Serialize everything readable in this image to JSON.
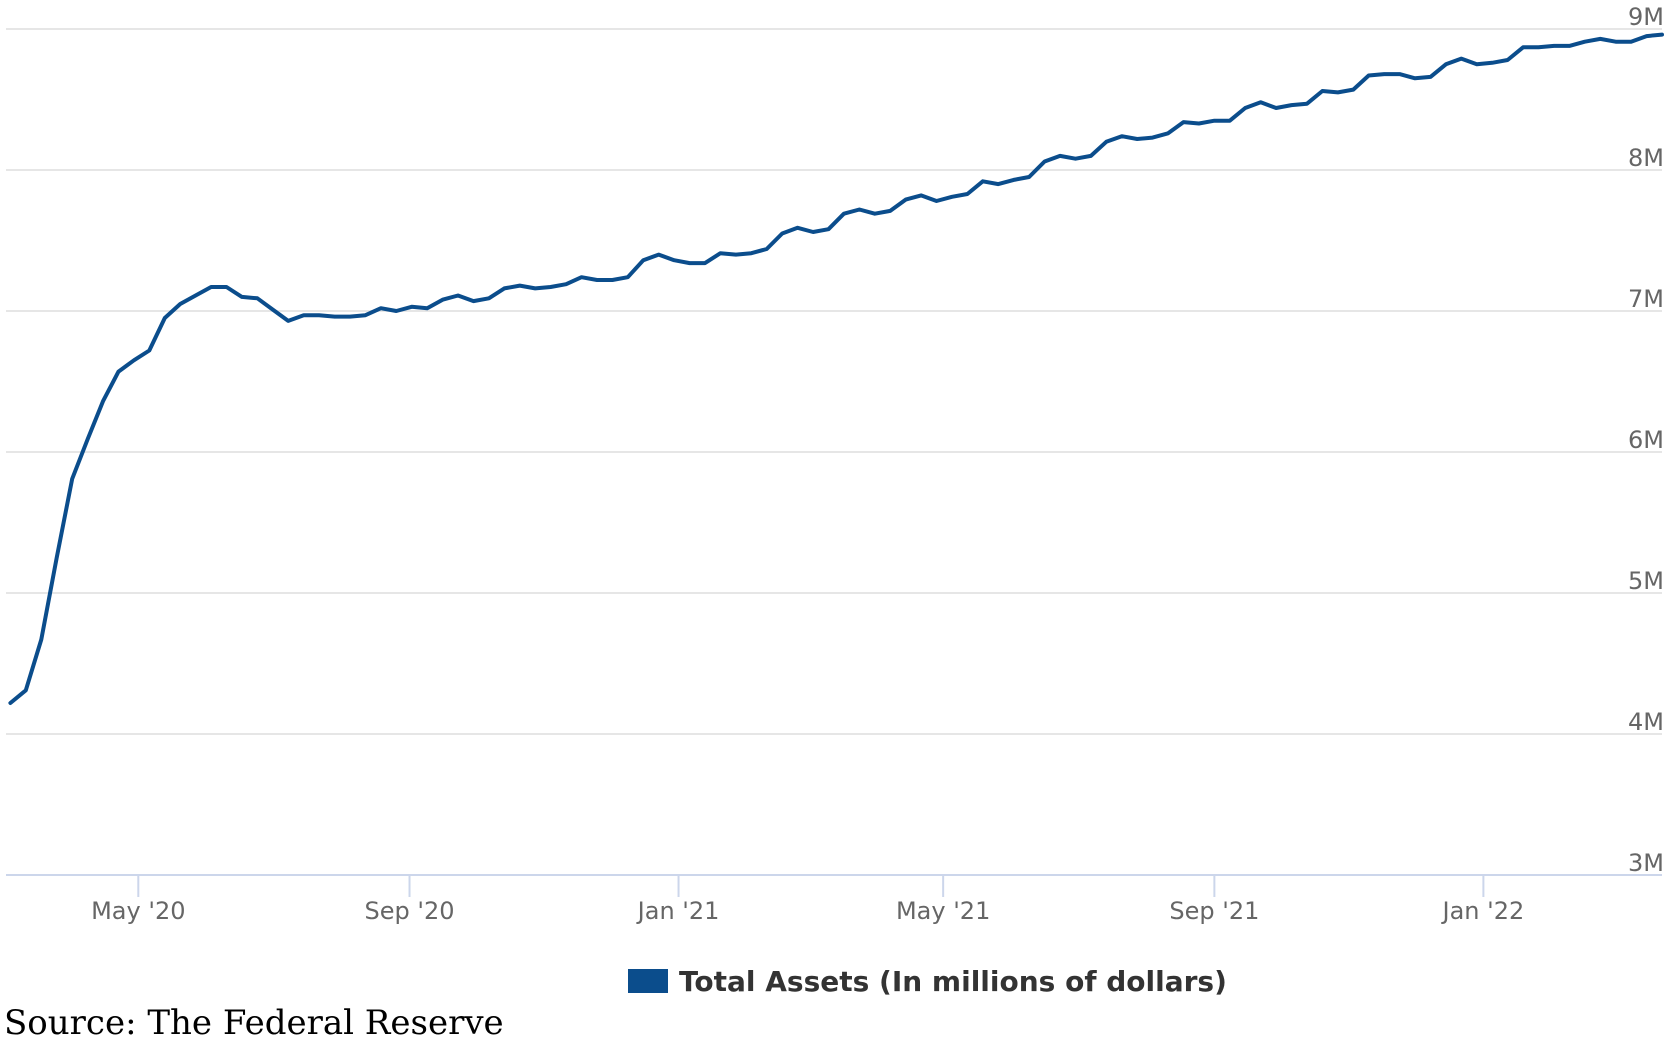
{
  "chart_data": {
    "type": "line",
    "title": "",
    "xlabel": "",
    "ylabel": "",
    "ylim": [
      3,
      9
    ],
    "y_ticks": [
      3,
      4,
      5,
      6,
      7,
      8,
      9
    ],
    "y_tick_labels": [
      "3M",
      "4M",
      "5M",
      "6M",
      "7M",
      "8M",
      "9M"
    ],
    "y_axis_side": "right",
    "grid": true,
    "xlim": [
      "2020-03-02",
      "2022-03-23"
    ],
    "x_ticks": [
      "2020-05-01",
      "2020-09-01",
      "2021-01-01",
      "2021-05-01",
      "2021-09-01",
      "2022-01-01"
    ],
    "x_tick_labels": [
      "May '20",
      "Sep '20",
      "Jan '21",
      "May '21",
      "Sep '21",
      "Jan '22"
    ],
    "legend_position": "bottom-center",
    "series": [
      {
        "name": "Total Assets (In millions of dollars)",
        "color": "#0b4d8c",
        "x": [
          "2020-03-04",
          "2020-03-11",
          "2020-03-18",
          "2020-03-25",
          "2020-04-01",
          "2020-04-08",
          "2020-04-15",
          "2020-04-22",
          "2020-04-29",
          "2020-05-06",
          "2020-05-13",
          "2020-05-20",
          "2020-05-27",
          "2020-06-03",
          "2020-06-10",
          "2020-06-17",
          "2020-06-24",
          "2020-07-01",
          "2020-07-08",
          "2020-07-15",
          "2020-07-22",
          "2020-07-29",
          "2020-08-05",
          "2020-08-12",
          "2020-08-19",
          "2020-08-26",
          "2020-09-02",
          "2020-09-09",
          "2020-09-16",
          "2020-09-23",
          "2020-09-30",
          "2020-10-07",
          "2020-10-14",
          "2020-10-21",
          "2020-10-28",
          "2020-11-04",
          "2020-11-11",
          "2020-11-18",
          "2020-11-25",
          "2020-12-02",
          "2020-12-09",
          "2020-12-16",
          "2020-12-23",
          "2020-12-30",
          "2021-01-06",
          "2021-01-13",
          "2021-01-20",
          "2021-01-27",
          "2021-02-03",
          "2021-02-10",
          "2021-02-17",
          "2021-02-24",
          "2021-03-03",
          "2021-03-10",
          "2021-03-17",
          "2021-03-24",
          "2021-03-31",
          "2021-04-07",
          "2021-04-14",
          "2021-04-21",
          "2021-04-28",
          "2021-05-05",
          "2021-05-12",
          "2021-05-19",
          "2021-05-26",
          "2021-06-02",
          "2021-06-09",
          "2021-06-16",
          "2021-06-23",
          "2021-06-30",
          "2021-07-07",
          "2021-07-14",
          "2021-07-21",
          "2021-07-28",
          "2021-08-04",
          "2021-08-11",
          "2021-08-18",
          "2021-08-25",
          "2021-09-01",
          "2021-09-08",
          "2021-09-15",
          "2021-09-22",
          "2021-09-29",
          "2021-10-06",
          "2021-10-13",
          "2021-10-20",
          "2021-10-27",
          "2021-11-03",
          "2021-11-10",
          "2021-11-17",
          "2021-11-24",
          "2021-12-01",
          "2021-12-08",
          "2021-12-15",
          "2021-12-22",
          "2021-12-29",
          "2022-01-05",
          "2022-01-12",
          "2022-01-19",
          "2022-01-26",
          "2022-02-02",
          "2022-02-09",
          "2022-02-16",
          "2022-02-23",
          "2022-03-02",
          "2022-03-09",
          "2022-03-16",
          "2022-03-23"
        ],
        "values": [
          4.22,
          4.31,
          4.67,
          5.25,
          5.81,
          6.09,
          6.36,
          6.57,
          6.65,
          6.72,
          6.95,
          7.05,
          7.11,
          7.17,
          7.17,
          7.1,
          7.09,
          7.01,
          6.93,
          6.97,
          6.97,
          6.96,
          6.96,
          6.97,
          7.02,
          7.0,
          7.03,
          7.02,
          7.08,
          7.11,
          7.07,
          7.09,
          7.16,
          7.18,
          7.16,
          7.17,
          7.19,
          7.24,
          7.22,
          7.22,
          7.24,
          7.36,
          7.4,
          7.36,
          7.34,
          7.34,
          7.41,
          7.4,
          7.41,
          7.44,
          7.55,
          7.59,
          7.56,
          7.58,
          7.69,
          7.72,
          7.69,
          7.71,
          7.79,
          7.82,
          7.78,
          7.81,
          7.83,
          7.92,
          7.9,
          7.93,
          7.95,
          8.06,
          8.1,
          8.08,
          8.1,
          8.2,
          8.24,
          8.22,
          8.23,
          8.26,
          8.34,
          8.33,
          8.35,
          8.35,
          8.44,
          8.48,
          8.44,
          8.46,
          8.47,
          8.56,
          8.55,
          8.57,
          8.67,
          8.68,
          8.68,
          8.65,
          8.66,
          8.75,
          8.79,
          8.75,
          8.76,
          8.78,
          8.87,
          8.87,
          8.88,
          8.88,
          8.91,
          8.93,
          8.91,
          8.91,
          8.95,
          8.96
        ]
      }
    ]
  },
  "source_text": "Source: The Federal Reserve"
}
